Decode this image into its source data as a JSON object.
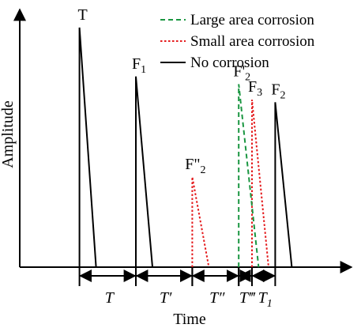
{
  "chart_data": {
    "type": "line",
    "title": "",
    "xlabel": "Time",
    "ylabel": "Amplitude",
    "legend": {
      "placement": "top-right",
      "entries": [
        {
          "label": "Large area corrosion",
          "color": "#1a9641",
          "style": "dashed"
        },
        {
          "label": "Small area corrosion",
          "color": "#e41a1c",
          "style": "dotted"
        },
        {
          "label": "No corrosion",
          "color": "#000000",
          "style": "solid"
        }
      ]
    },
    "x_range": [
      0,
      100
    ],
    "y_range": [
      0,
      100
    ],
    "series": [
      {
        "name": "No corrosion",
        "style": "solid",
        "color": "#000000",
        "pulses": [
          {
            "label": "T",
            "x_rise": 18,
            "x_end": 23,
            "peak": 93
          },
          {
            "label": "F1",
            "x_rise": 35,
            "x_end": 40,
            "peak": 74
          },
          {
            "label": "F2",
            "x_rise": 77,
            "x_end": 82,
            "peak": 64
          }
        ]
      },
      {
        "name": "Small area corrosion",
        "style": "dotted",
        "color": "#e41a1c",
        "pulses": [
          {
            "label": "F\"2",
            "x_rise": 52,
            "x_end": 57,
            "peak": 35
          },
          {
            "label": "F3",
            "x_rise": 70,
            "x_end": 75,
            "peak": 65
          }
        ]
      },
      {
        "name": "Large area corrosion",
        "style": "dashed",
        "color": "#1a9641",
        "pulses": [
          {
            "label": "F'2",
            "x_rise": 66,
            "x_end": 72,
            "peak": 71
          }
        ]
      }
    ],
    "intervals": [
      {
        "label": "T",
        "from": 18,
        "to": 35
      },
      {
        "label": "T′",
        "from": 35,
        "to": 52
      },
      {
        "label": "T″",
        "from": 52,
        "to": 66
      },
      {
        "label": "T‴",
        "from": 66,
        "to": 70
      },
      {
        "label": "T1",
        "from": 70,
        "to": 77
      }
    ]
  }
}
